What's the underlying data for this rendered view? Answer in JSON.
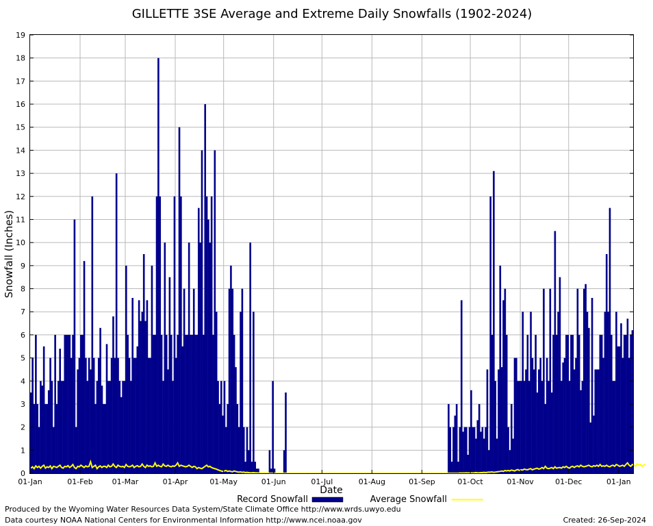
{
  "chart_data": {
    "type": "bar",
    "title": "GILLETTE 3SE Average and Extreme Daily Snowfalls (1902-2024)",
    "xlabel": "Date",
    "ylabel": "Snowfall (Inches)",
    "ylim": [
      0,
      19
    ],
    "x_ticks": [
      "01-Jan",
      "01-Feb",
      "01-Mar",
      "01-Apr",
      "01-May",
      "01-Jun",
      "01-Jul",
      "01-Aug",
      "01-Sep",
      "01-Oct",
      "01-Nov",
      "01-Dec",
      "01-Jan"
    ],
    "x_tick_days": [
      1,
      32,
      60,
      91,
      121,
      152,
      182,
      213,
      244,
      274,
      305,
      335,
      366
    ],
    "y_ticks": [
      0,
      1,
      2,
      3,
      4,
      5,
      6,
      7,
      8,
      9,
      10,
      11,
      12,
      13,
      14,
      15,
      16,
      17,
      18,
      19
    ],
    "grid": true,
    "legend_position": "bottom",
    "series": [
      {
        "name": "Record Snowfall",
        "kind": "bar",
        "color": "#00008B",
        "values": [
          3.5,
          5,
          3,
          6,
          3,
          2,
          4,
          3.8,
          5.5,
          3,
          3,
          3.6,
          5,
          4,
          2,
          6,
          3,
          4,
          5.4,
          4,
          4,
          6,
          6,
          6,
          6,
          5,
          6,
          11,
          2,
          4.5,
          5,
          6,
          6,
          9.2,
          5,
          4,
          5,
          4.5,
          12,
          5,
          3,
          4,
          5,
          6.3,
          3.8,
          3,
          3,
          5.6,
          4,
          4,
          5,
          6.8,
          5,
          13,
          5,
          4,
          3.3,
          4,
          4,
          9,
          6,
          5,
          4,
          7.6,
          5,
          5,
          5.5,
          7.5,
          6.6,
          7,
          9.5,
          6.6,
          7.5,
          5,
          5,
          9,
          6,
          6,
          12,
          18,
          12,
          6,
          4,
          10,
          6,
          4.5,
          8.5,
          6,
          4,
          12,
          5,
          6,
          15,
          12,
          5.5,
          8,
          6,
          6,
          10,
          6,
          6,
          8,
          6,
          6,
          11.5,
          10,
          14,
          6,
          16,
          12,
          11,
          10,
          12,
          6,
          14,
          7,
          4,
          3,
          4,
          2.5,
          4,
          2,
          3,
          8,
          9,
          8,
          6,
          4.6,
          3,
          2,
          7,
          8,
          2,
          0.5,
          2,
          1,
          10,
          0.5,
          7,
          0.5,
          0.2,
          0.2,
          0,
          0,
          0,
          0,
          0,
          0,
          1,
          0.2,
          4,
          0.2,
          0,
          0,
          0,
          0,
          0,
          1,
          3.5,
          0,
          0,
          0,
          0,
          0,
          0,
          0,
          0,
          0,
          0,
          0,
          0,
          0,
          0,
          0,
          0,
          0,
          0,
          0,
          0,
          0,
          0,
          0,
          0,
          0,
          0,
          0,
          0,
          0,
          0,
          0,
          0,
          0,
          0,
          0,
          0,
          0,
          0,
          0,
          0,
          0,
          0,
          0,
          0,
          0,
          0,
          0,
          0,
          0,
          0,
          0,
          0,
          0,
          0,
          0,
          0,
          0,
          0,
          0,
          0,
          0,
          0,
          0,
          0,
          0,
          0,
          0,
          0,
          0,
          0,
          0,
          0,
          0,
          0,
          0,
          0,
          0,
          0,
          0,
          0,
          0,
          0,
          0,
          0,
          0,
          0,
          0,
          0,
          0,
          0,
          0,
          0,
          0,
          0,
          0,
          0,
          0,
          0,
          0,
          0,
          3,
          2,
          0.5,
          2,
          2.5,
          3,
          0.5,
          2,
          7.5,
          1.8,
          2,
          2,
          0.8,
          2,
          3.6,
          2,
          2,
          1.5,
          2.3,
          3,
          1.8,
          2,
          1.5,
          2,
          4.5,
          1,
          12,
          6,
          13.1,
          4,
          1.5,
          4.5,
          9,
          4.6,
          7.5,
          8,
          6,
          2,
          1,
          3,
          1.5,
          5,
          5,
          4,
          4,
          4,
          7,
          4,
          4.5,
          6,
          4,
          7,
          5,
          4.5,
          6,
          3.5,
          4.5,
          5,
          4,
          8,
          3,
          5,
          4,
          8,
          3.5,
          6,
          10.5,
          6,
          7,
          8.5,
          4,
          4.8,
          5,
          6,
          6,
          4,
          6,
          6,
          4.5,
          5,
          8,
          6,
          3.6,
          4,
          8,
          8.2,
          7,
          6.3,
          2.2,
          7.6,
          2.5,
          4.5,
          4.5,
          4.5,
          6,
          6,
          5,
          7,
          9.5,
          7,
          11.5,
          6,
          4,
          4,
          7,
          5.5,
          5.5,
          6.5,
          5,
          6,
          6,
          6.7,
          5,
          6,
          6.2
        ]
      },
      {
        "name": "Average Snowfall",
        "kind": "line",
        "color": "#FFFF00",
        "values": [
          0.22,
          0.28,
          0.2,
          0.32,
          0.25,
          0.3,
          0.22,
          0.3,
          0.35,
          0.22,
          0.28,
          0.25,
          0.32,
          0.2,
          0.3,
          0.28,
          0.25,
          0.3,
          0.35,
          0.25,
          0.22,
          0.3,
          0.28,
          0.33,
          0.25,
          0.3,
          0.38,
          0.25,
          0.2,
          0.3,
          0.28,
          0.35,
          0.3,
          0.25,
          0.32,
          0.28,
          0.3,
          0.5,
          0.25,
          0.3,
          0.35,
          0.2,
          0.28,
          0.32,
          0.25,
          0.3,
          0.3,
          0.25,
          0.35,
          0.28,
          0.3,
          0.4,
          0.3,
          0.25,
          0.35,
          0.3,
          0.28,
          0.3,
          0.25,
          0.38,
          0.3,
          0.28,
          0.3,
          0.35,
          0.25,
          0.3,
          0.33,
          0.28,
          0.3,
          0.4,
          0.3,
          0.25,
          0.35,
          0.3,
          0.32,
          0.28,
          0.3,
          0.45,
          0.3,
          0.35,
          0.3,
          0.28,
          0.4,
          0.32,
          0.3,
          0.35,
          0.3,
          0.28,
          0.32,
          0.3,
          0.35,
          0.45,
          0.3,
          0.35,
          0.32,
          0.3,
          0.28,
          0.3,
          0.35,
          0.3,
          0.25,
          0.3,
          0.28,
          0.2,
          0.25,
          0.22,
          0.2,
          0.25,
          0.3,
          0.35,
          0.28,
          0.3,
          0.25,
          0.22,
          0.2,
          0.18,
          0.15,
          0.12,
          0.1,
          0.08,
          0.1,
          0.12,
          0.08,
          0.1,
          0.08,
          0.06,
          0.1,
          0.08,
          0.06,
          0.05,
          0.06,
          0.04,
          0.05,
          0.03,
          0.04,
          0.03,
          0.02,
          0.02,
          0.03,
          0.02,
          0.02,
          0.01,
          0.01,
          0.01,
          0.01,
          0.01,
          0.01,
          0,
          0,
          0,
          0,
          0,
          0,
          0,
          0,
          0,
          0,
          0,
          0,
          0,
          0,
          0,
          0,
          0,
          0,
          0,
          0,
          0,
          0,
          0,
          0,
          0,
          0,
          0,
          0,
          0,
          0,
          0,
          0,
          0,
          0,
          0,
          0,
          0,
          0,
          0,
          0,
          0,
          0,
          0,
          0,
          0,
          0,
          0,
          0,
          0,
          0,
          0,
          0,
          0,
          0,
          0,
          0,
          0,
          0,
          0,
          0,
          0,
          0,
          0,
          0,
          0,
          0,
          0,
          0,
          0,
          0,
          0,
          0,
          0,
          0,
          0,
          0,
          0,
          0,
          0,
          0,
          0,
          0,
          0,
          0,
          0,
          0,
          0,
          0,
          0,
          0,
          0,
          0,
          0,
          0,
          0,
          0,
          0,
          0,
          0,
          0,
          0,
          0,
          0,
          0,
          0,
          0,
          0,
          0,
          0,
          0,
          0,
          0,
          0,
          0,
          0,
          0,
          0,
          0,
          0,
          0.01,
          0.01,
          0.01,
          0.01,
          0.02,
          0.01,
          0.02,
          0.02,
          0.01,
          0.02,
          0.03,
          0.02,
          0.02,
          0.03,
          0.03,
          0.04,
          0.03,
          0.04,
          0.05,
          0.05,
          0.06,
          0.04,
          0.05,
          0.06,
          0.07,
          0.08,
          0.1,
          0.08,
          0.12,
          0.1,
          0.12,
          0.1,
          0.14,
          0.12,
          0.1,
          0.14,
          0.16,
          0.12,
          0.15,
          0.14,
          0.18,
          0.16,
          0.15,
          0.18,
          0.2,
          0.15,
          0.18,
          0.2,
          0.22,
          0.18,
          0.2,
          0.25,
          0.2,
          0.3,
          0.22,
          0.2,
          0.22,
          0.25,
          0.2,
          0.28,
          0.22,
          0.24,
          0.25,
          0.22,
          0.28,
          0.25,
          0.3,
          0.25,
          0.22,
          0.28,
          0.3,
          0.25,
          0.3,
          0.32,
          0.28,
          0.35,
          0.3,
          0.28,
          0.3,
          0.32,
          0.35,
          0.3,
          0.28,
          0.33,
          0.3,
          0.35,
          0.3,
          0.38,
          0.3,
          0.32,
          0.3,
          0.35,
          0.3,
          0.28,
          0.33,
          0.35,
          0.3,
          0.38,
          0.35,
          0.3,
          0.32,
          0.35,
          0.3,
          0.38,
          0.45,
          0.35,
          0.3,
          0.38,
          0.35,
          0.3,
          0.4,
          0.35,
          0.38,
          0.3,
          0.35,
          0.38
        ]
      }
    ]
  },
  "footer": {
    "producer": "Produced by the Wyoming Water Resources Data System/State Climate Office http://www.wrds.uwyo.edu",
    "courtesy": "Data courtesy NOAA National Centers for Environmental Information http://www.ncei.noaa.gov",
    "created": "Created:  26-Sep-2024"
  }
}
